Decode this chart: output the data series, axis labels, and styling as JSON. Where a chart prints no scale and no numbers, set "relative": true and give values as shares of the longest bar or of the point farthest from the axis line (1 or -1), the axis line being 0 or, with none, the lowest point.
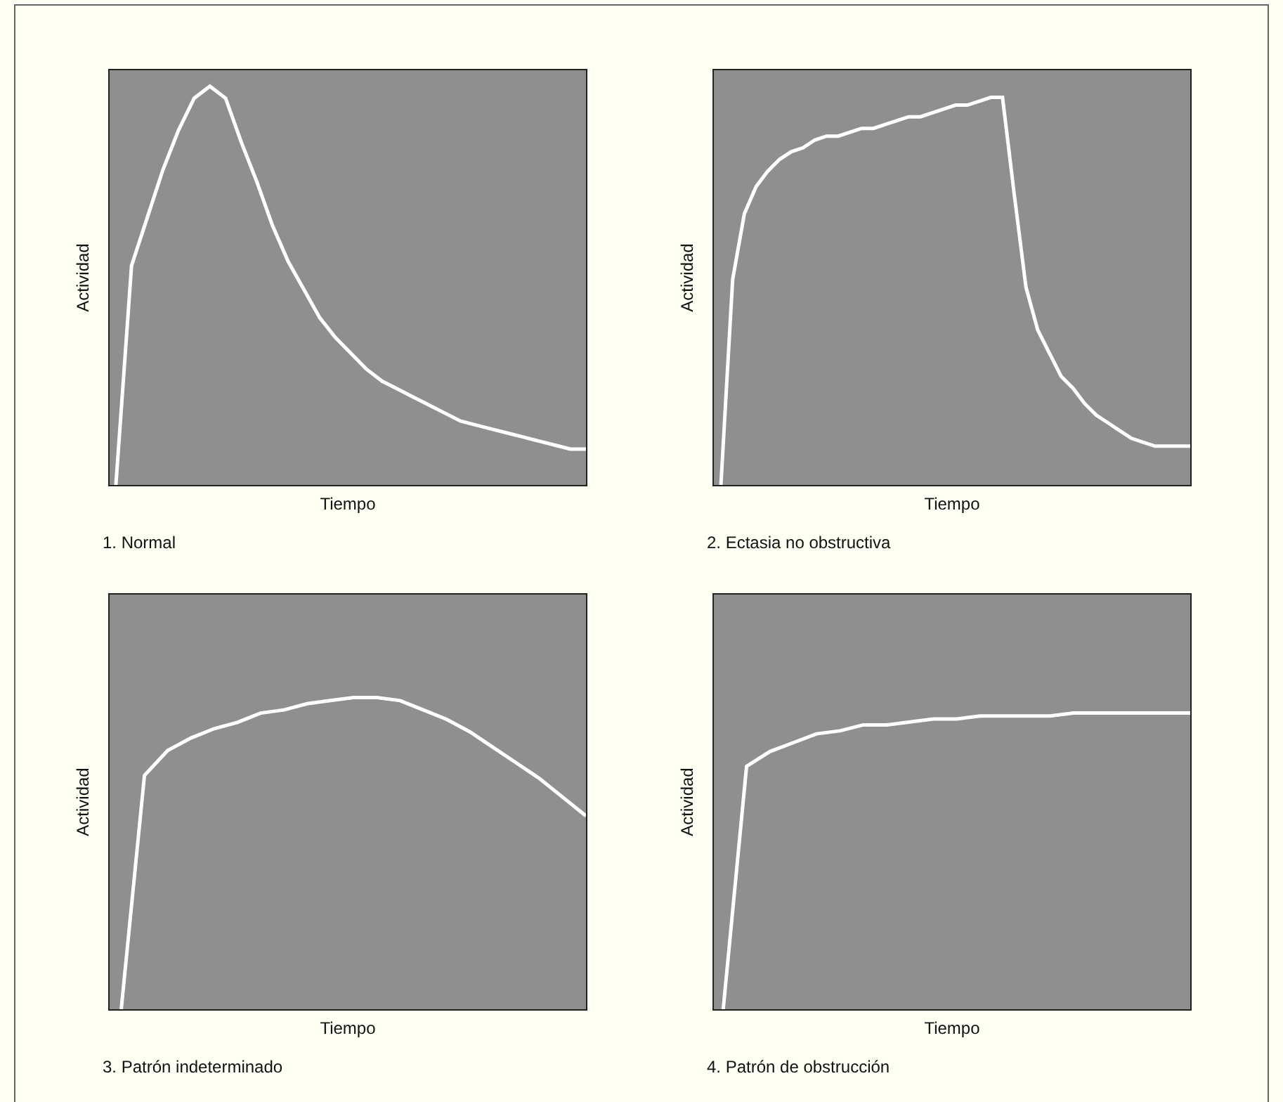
{
  "chart_data": [
    {
      "type": "line",
      "relative": true,
      "xlabel": "Tiempo",
      "ylabel": "Actividad",
      "annotations": [
        "1. Normal"
      ],
      "categories": [
        null,
        null,
        null,
        null,
        null,
        null,
        null,
        null,
        null,
        null,
        null,
        null,
        null,
        null,
        null,
        null,
        null,
        null,
        null,
        null,
        null,
        null,
        null,
        null,
        null,
        null,
        null,
        null,
        null,
        null,
        null
      ],
      "series": [
        {
          "color": "#ffffff",
          "values": [
            0,
            0.55,
            0.67,
            0.79,
            0.89,
            0.97,
            1,
            0.97,
            0.86,
            0.76,
            0.65,
            0.56,
            0.49,
            0.42,
            0.37,
            0.33,
            0.29,
            0.26,
            0.24,
            0.22,
            0.2,
            0.18,
            0.16,
            0.15,
            0.14,
            0.13,
            0.12,
            0.11,
            0.1,
            0.09,
            0.09
          ]
        }
      ]
    },
    {
      "type": "line",
      "relative": true,
      "xlabel": "Tiempo",
      "ylabel": "Actividad",
      "annotations": [
        "2. Ectasia no obstructiva"
      ],
      "categories": [
        null,
        null,
        null,
        null,
        null,
        null,
        null,
        null,
        null,
        null,
        null,
        null,
        null,
        null,
        null,
        null,
        null,
        null,
        null,
        null,
        null,
        null,
        null,
        null,
        null,
        null,
        null,
        null,
        null,
        null,
        null,
        null,
        null,
        null,
        null,
        null,
        null,
        null,
        null,
        null,
        null
      ],
      "series": [
        {
          "color": "#ffffff",
          "values": [
            0,
            0.53,
            0.7,
            0.77,
            0.81,
            0.84,
            0.86,
            0.87,
            0.89,
            0.9,
            0.9,
            0.91,
            0.92,
            0.92,
            0.93,
            0.94,
            0.95,
            0.95,
            0.96,
            0.97,
            0.98,
            0.98,
            0.99,
            1,
            1,
            0.75,
            0.51,
            0.4,
            0.34,
            0.28,
            0.25,
            0.21,
            0.18,
            0.16,
            0.14,
            0.12,
            0.11,
            0.1,
            0.1,
            0.1,
            0.1
          ]
        }
      ]
    },
    {
      "type": "line",
      "relative": true,
      "xlabel": "Tiempo",
      "ylabel": "Actividad",
      "annotations": [
        "3. Patrón indeterminado"
      ],
      "categories": [
        null,
        null,
        null,
        null,
        null,
        null,
        null,
        null,
        null,
        null,
        null,
        null,
        null,
        null,
        null,
        null,
        null,
        null,
        null,
        null,
        null
      ],
      "series": [
        {
          "color": "#ffffff",
          "values": [
            0,
            0.75,
            0.83,
            0.87,
            0.9,
            0.92,
            0.95,
            0.96,
            0.98,
            0.99,
            1,
            1,
            0.99,
            0.96,
            0.93,
            0.89,
            0.84,
            0.79,
            0.74,
            0.68,
            0.62
          ]
        }
      ]
    },
    {
      "type": "line",
      "relative": true,
      "xlabel": "Tiempo",
      "ylabel": "Actividad",
      "annotations": [
        "4. Patrón de obstrucción"
      ],
      "categories": [
        null,
        null,
        null,
        null,
        null,
        null,
        null,
        null,
        null,
        null,
        null,
        null,
        null,
        null,
        null,
        null,
        null,
        null,
        null,
        null,
        null
      ],
      "series": [
        {
          "color": "#ffffff",
          "values": [
            0,
            0.82,
            0.87,
            0.9,
            0.93,
            0.94,
            0.96,
            0.96,
            0.97,
            0.98,
            0.98,
            0.99,
            0.99,
            0.99,
            0.99,
            1,
            1,
            1,
            1,
            1,
            1
          ]
        }
      ]
    }
  ]
}
